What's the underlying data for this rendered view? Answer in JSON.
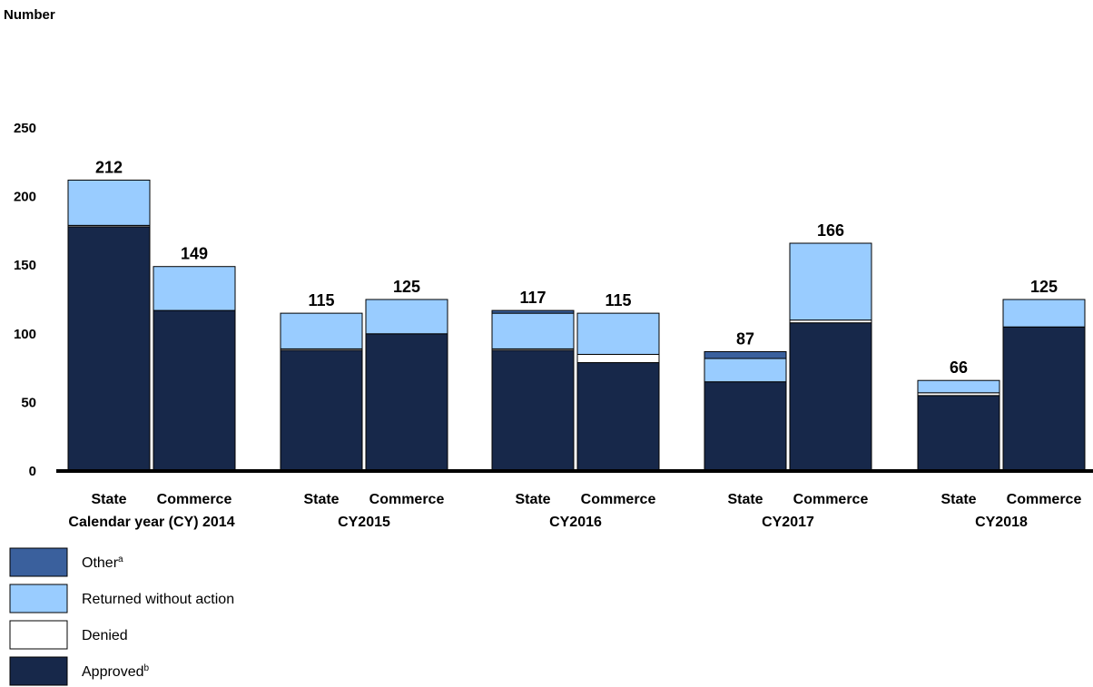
{
  "chart_data": {
    "type": "bar",
    "stacked": true,
    "ylabel": "Number",
    "ylim": [
      0,
      250
    ],
    "yticks": [
      0,
      50,
      100,
      150,
      200,
      250
    ],
    "categories": [
      "State",
      "Commerce",
      "State",
      "Commerce",
      "State",
      "Commerce",
      "State",
      "Commerce",
      "State",
      "Commerce"
    ],
    "groups": [
      {
        "label": "Calendar year (CY) 2014",
        "categories": [
          "State",
          "Commerce"
        ]
      },
      {
        "label": "CY2015",
        "categories": [
          "State",
          "Commerce"
        ]
      },
      {
        "label": "CY2016",
        "categories": [
          "State",
          "Commerce"
        ]
      },
      {
        "label": "CY2017",
        "categories": [
          "State",
          "Commerce"
        ]
      },
      {
        "label": "CY2018",
        "categories": [
          "State",
          "Commerce"
        ]
      }
    ],
    "series": [
      {
        "name": "Approved",
        "superscript": "b",
        "color": "#17284a",
        "values": [
          178,
          117,
          88,
          100,
          88,
          79,
          65,
          108,
          55,
          105
        ]
      },
      {
        "name": "Denied",
        "color": "#ffffff",
        "values": [
          1,
          0,
          1,
          0,
          1,
          6,
          0,
          2,
          2,
          0
        ]
      },
      {
        "name": "Returned without action",
        "color": "#99ccff",
        "values": [
          33,
          32,
          26,
          25,
          26,
          30,
          17,
          56,
          9,
          20
        ]
      },
      {
        "name": "Other",
        "superscript": "a",
        "color": "#3a609d",
        "values": [
          0,
          0,
          0,
          0,
          2,
          0,
          5,
          0,
          0,
          0
        ]
      }
    ],
    "totals": [
      212,
      149,
      115,
      125,
      117,
      115,
      87,
      166,
      66,
      125
    ],
    "legend": {
      "position": "bottom-left",
      "order": [
        "Other",
        "Returned without action",
        "Denied",
        "Approved"
      ]
    }
  }
}
